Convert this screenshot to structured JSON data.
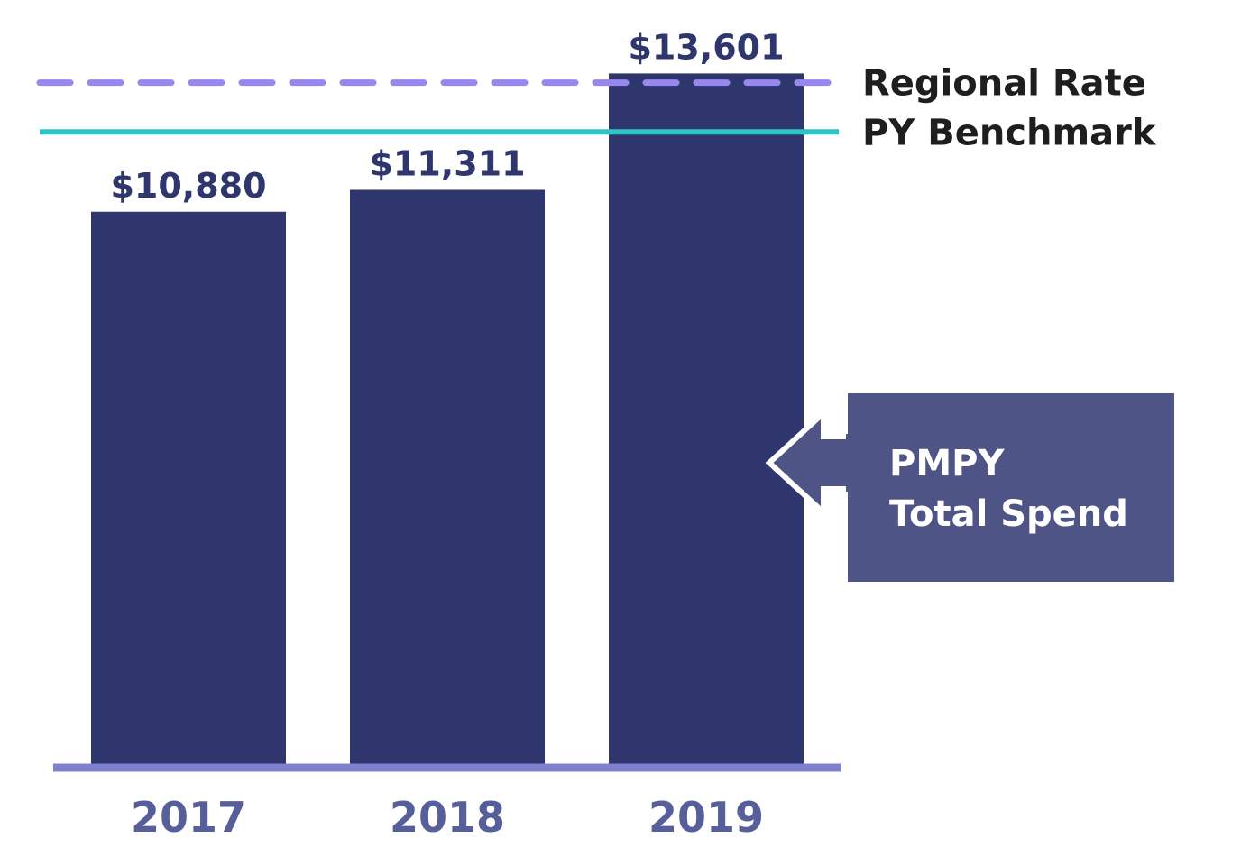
{
  "chart_data": {
    "type": "bar",
    "title": "",
    "xlabel": "",
    "ylabel": "",
    "categories": [
      "2017",
      "2018",
      "2019"
    ],
    "values": [
      10880,
      11311,
      13601
    ],
    "value_labels": [
      "$10,880",
      "$11,311",
      "$13,601"
    ],
    "ylim": [
      0,
      14300
    ],
    "grid": false,
    "reference_lines": [
      {
        "name": "Regional Rate",
        "value": 13420,
        "style": "dashed",
        "color": "#9688f0"
      },
      {
        "name": "PY Benchmark",
        "value": 12450,
        "style": "solid",
        "color": "#2ec4c6"
      }
    ],
    "callout": {
      "line1": "PMPY",
      "line2": "Total Spend",
      "points_to": "2019"
    },
    "colors": {
      "bar": "#2e366d",
      "value_label": "#2e366d",
      "tick_label": "#565f99",
      "axis": "#8080d0",
      "legend_text": "#1e1e1e",
      "callout_fill": "#4e5486",
      "callout_text": "#ffffff"
    }
  }
}
